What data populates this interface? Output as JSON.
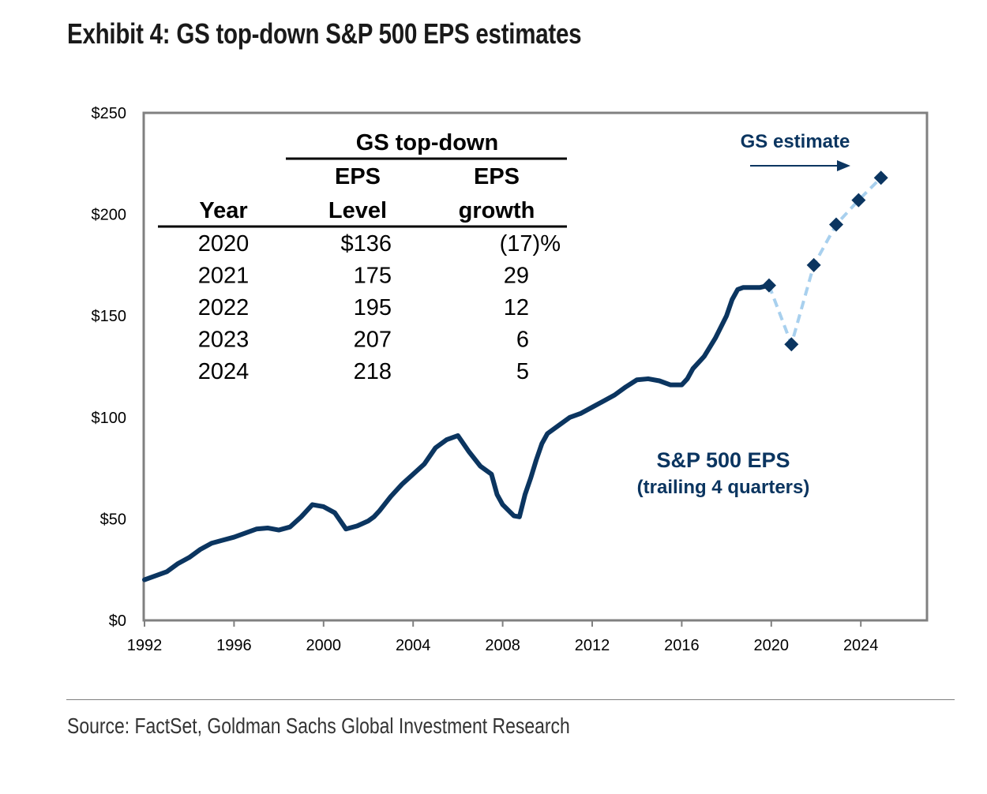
{
  "title": "Exhibit 4: GS top-down S&P 500 EPS estimates",
  "source": "Source: FactSet, Goldman Sachs Global Investment Research",
  "colors": {
    "actual_line": "#0b3560",
    "estimate_line": "#a8d0ee",
    "marker": "#0b3560",
    "frame": "#808080",
    "annotation": "#0b3560"
  },
  "chart_data": {
    "type": "line",
    "title": "Exhibit 4: GS top-down S&P 500 EPS estimates",
    "xlabel": "",
    "ylabel": "",
    "xlim": [
      1992,
      2027
    ],
    "ylim": [
      0,
      250
    ],
    "x_ticks": [
      1992,
      1996,
      2000,
      2004,
      2008,
      2012,
      2016,
      2020,
      2024
    ],
    "x_tick_labels": [
      "1992",
      "1996",
      "2000",
      "2004",
      "2008",
      "2012",
      "2016",
      "2020",
      "2024"
    ],
    "y_ticks": [
      0,
      50,
      100,
      150,
      200,
      250
    ],
    "y_tick_labels": [
      "$0",
      "$50",
      "$100",
      "$150",
      "$200",
      "$250"
    ],
    "grid": false,
    "series": [
      {
        "name": "S&P 500 EPS (trailing 4 quarters)",
        "style": "solid",
        "x": [
          1992.0,
          1992.5,
          1993.0,
          1993.5,
          1994.0,
          1994.5,
          1995.0,
          1995.5,
          1996.0,
          1996.5,
          1997.0,
          1997.5,
          1998.0,
          1998.5,
          1999.0,
          1999.5,
          2000.0,
          2000.5,
          2000.75,
          2001.0,
          2001.5,
          2002.0,
          2002.25,
          2002.5,
          2003.0,
          2003.5,
          2004.0,
          2004.5,
          2005.0,
          2005.5,
          2006.0,
          2006.5,
          2007.0,
          2007.5,
          2007.75,
          2008.0,
          2008.5,
          2008.75,
          2009.0,
          2009.25,
          2009.5,
          2009.75,
          2010.0,
          2010.5,
          2011.0,
          2011.5,
          2012.0,
          2012.5,
          2013.0,
          2013.5,
          2014.0,
          2014.5,
          2015.0,
          2015.5,
          2016.0,
          2016.25,
          2016.5,
          2017.0,
          2017.5,
          2018.0,
          2018.25,
          2018.5,
          2018.75,
          2019.0,
          2019.5,
          2019.9
        ],
        "values": [
          20,
          22,
          24,
          28,
          31,
          35,
          38,
          39.5,
          41,
          43,
          45,
          45.5,
          44.5,
          46,
          51,
          57,
          56,
          53,
          49,
          45,
          46.5,
          49,
          51,
          54,
          61,
          67,
          72,
          77,
          85,
          89,
          91,
          83,
          76,
          72,
          62,
          57,
          51.5,
          51,
          62,
          70,
          79,
          87,
          92,
          96,
          100,
          102,
          105,
          108,
          111,
          115,
          118.5,
          119,
          118,
          116,
          116,
          119,
          124,
          130,
          139,
          150,
          158,
          163,
          164,
          164,
          164,
          165
        ]
      },
      {
        "name": "GS estimate",
        "style": "dashed",
        "markers": "diamond",
        "x": [
          2019.9,
          2020.9,
          2021.9,
          2022.9,
          2023.9,
          2024.9
        ],
        "values": [
          165,
          136,
          175,
          195,
          207,
          218
        ]
      }
    ],
    "annotations": [
      {
        "text": "GS estimate",
        "arrow": "right",
        "placement": "top-right"
      },
      {
        "text": "S&P 500 EPS",
        "subtext": "(trailing 4 quarters)",
        "placement": "center-right"
      }
    ],
    "inset_table": {
      "group_header": "GS top-down",
      "columns": [
        {
          "line1": "",
          "line2": "Year"
        },
        {
          "line1": "EPS",
          "line2": "Level"
        },
        {
          "line1": "EPS",
          "line2": "growth"
        }
      ],
      "rows": [
        {
          "year": "2020",
          "level": "$136",
          "growth": "(17)%"
        },
        {
          "year": "2021",
          "level": "175",
          "growth": "29"
        },
        {
          "year": "2022",
          "level": "195",
          "growth": "12"
        },
        {
          "year": "2023",
          "level": "207",
          "growth": "6"
        },
        {
          "year": "2024",
          "level": "218",
          "growth": "5"
        }
      ]
    }
  }
}
